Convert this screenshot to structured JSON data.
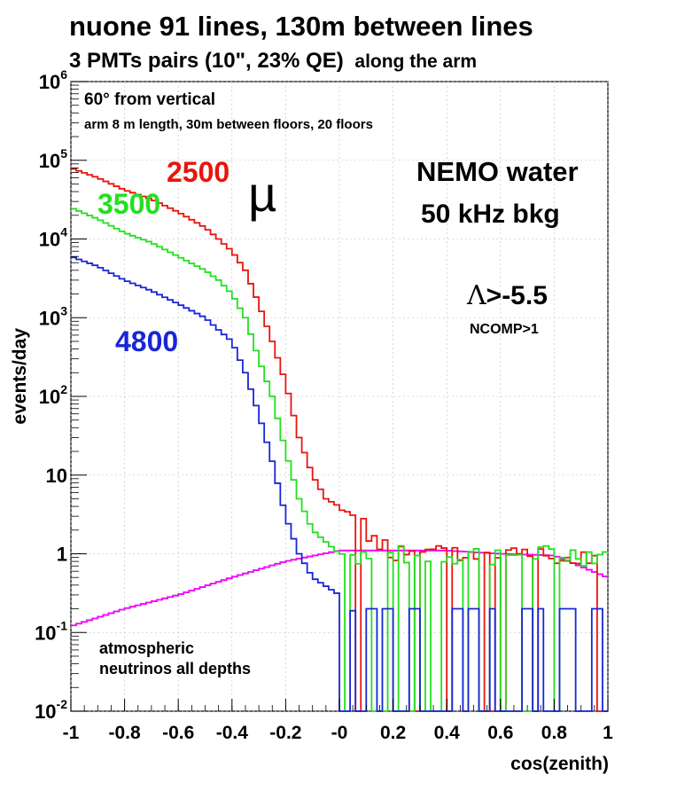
{
  "chart_data": {
    "type": "line",
    "title": "nuone 91 lines, 130m between lines",
    "subtitle_part1": "3 PMTs pairs (10\", 23% QE)",
    "subtitle_part2": "along the arm",
    "xlabel": "cos(zenith)",
    "ylabel": "events/day",
    "xlim": [
      -1,
      1
    ],
    "ylim": [
      0.01,
      1000000
    ],
    "log_y": true,
    "x_ticks": [
      {
        "v": -1,
        "label": "-1"
      },
      {
        "v": -0.8,
        "label": "-0.8"
      },
      {
        "v": -0.6,
        "label": "-0.6"
      },
      {
        "v": -0.4,
        "label": "-0.4"
      },
      {
        "v": -0.2,
        "label": "-0.2"
      },
      {
        "v": 0,
        "label": "-0"
      },
      {
        "v": 0.2,
        "label": "0.2"
      },
      {
        "v": 0.4,
        "label": "0.4"
      },
      {
        "v": 0.6,
        "label": "0.6"
      },
      {
        "v": 0.8,
        "label": "0.8"
      },
      {
        "v": 1,
        "label": "1"
      }
    ],
    "y_ticks": [
      {
        "v": 0.01,
        "base": "10",
        "exp": "-2",
        "label": "10-2"
      },
      {
        "v": 0.1,
        "base": "10",
        "exp": "-1",
        "label": "10-1"
      },
      {
        "v": 1,
        "base": "1",
        "exp": "",
        "label": "1"
      },
      {
        "v": 10,
        "base": "10",
        "exp": "",
        "label": "10"
      },
      {
        "v": 100,
        "base": "10",
        "exp": "2",
        "label": "102"
      },
      {
        "v": 1000,
        "base": "10",
        "exp": "3",
        "label": "103"
      },
      {
        "v": 10000,
        "base": "10",
        "exp": "4",
        "label": "104"
      },
      {
        "v": 100000,
        "base": "10",
        "exp": "5",
        "label": "105"
      },
      {
        "v": 1000000,
        "base": "10",
        "exp": "6",
        "label": "106"
      }
    ],
    "annotations": {
      "angle": "60° from vertical",
      "arm": "arm 8 m length, 30m between floors, 20 floors",
      "mu": "µ",
      "water": "NEMO water",
      "bkg": "50 kHz bkg",
      "lambda_sym": "Λ",
      "lambda_rest": ">-5.5",
      "ncomp": "NCOMP>1",
      "atm1": "atmospheric",
      "atm2": "neutrinos all depths"
    },
    "series": [
      {
        "name": "2500",
        "color": "#e8150c",
        "cut_points": [
          [
            -1.0,
            80000
          ],
          [
            -0.9,
            60000
          ],
          [
            -0.8,
            42000
          ],
          [
            -0.7,
            32000
          ],
          [
            -0.6,
            22000
          ],
          [
            -0.5,
            14000
          ],
          [
            -0.45,
            10000
          ],
          [
            -0.4,
            7000
          ],
          [
            -0.35,
            4000
          ],
          [
            -0.3,
            1500
          ],
          [
            -0.25,
            500
          ],
          [
            -0.2,
            150
          ],
          [
            -0.15,
            30
          ],
          [
            -0.1,
            10
          ],
          [
            -0.05,
            5
          ],
          [
            0,
            4
          ],
          [
            0.05,
            3
          ],
          [
            0.1,
            2
          ],
          [
            0.15,
            1.5
          ],
          [
            0.2,
            1
          ],
          [
            0.3,
            1
          ],
          [
            0.4,
            1
          ],
          [
            0.5,
            1
          ],
          [
            0.7,
            1
          ],
          [
            0.8,
            1
          ]
        ]
      },
      {
        "name": "3500",
        "color": "#22e01e",
        "cut_points": [
          [
            -1.0,
            25000
          ],
          [
            -0.9,
            18000
          ],
          [
            -0.8,
            12000
          ],
          [
            -0.7,
            9000
          ],
          [
            -0.6,
            6000
          ],
          [
            -0.5,
            4000
          ],
          [
            -0.45,
            3000
          ],
          [
            -0.4,
            2000
          ],
          [
            -0.35,
            1000
          ],
          [
            -0.3,
            300
          ],
          [
            -0.25,
            100
          ],
          [
            -0.2,
            20
          ],
          [
            -0.15,
            5
          ],
          [
            -0.1,
            2
          ],
          [
            0,
            1
          ],
          [
            0.2,
            1
          ],
          [
            0.4,
            1
          ],
          [
            0.6,
            1
          ],
          [
            0.8,
            1
          ]
        ]
      },
      {
        "name": "4800",
        "color": "#1826d6",
        "cut_points": [
          [
            -1.0,
            6000
          ],
          [
            -0.9,
            4500
          ],
          [
            -0.8,
            3000
          ],
          [
            -0.7,
            2200
          ],
          [
            -0.6,
            1500
          ],
          [
            -0.5,
            1000
          ],
          [
            -0.45,
            700
          ],
          [
            -0.4,
            500
          ],
          [
            -0.35,
            200
          ],
          [
            -0.3,
            60
          ],
          [
            -0.25,
            15
          ],
          [
            -0.2,
            3
          ],
          [
            -0.15,
            1
          ],
          [
            -0.1,
            0.5
          ],
          [
            0,
            0.3
          ],
          [
            0.1,
            0.2
          ]
        ]
      },
      {
        "name": "atmospheric neutrinos all depths",
        "color": "#ff00ff",
        "cut_points": [
          [
            -1.0,
            0.12
          ],
          [
            -0.8,
            0.2
          ],
          [
            -0.6,
            0.3
          ],
          [
            -0.4,
            0.5
          ],
          [
            -0.2,
            0.8
          ],
          [
            0,
            1.1
          ],
          [
            0.2,
            1.1
          ],
          [
            0.4,
            1.1
          ],
          [
            0.6,
            1.0
          ],
          [
            0.8,
            0.95
          ],
          [
            1.0,
            0.5
          ]
        ]
      }
    ],
    "curve_labels": {
      "red": "2500",
      "green": "3500",
      "blue": "4800"
    }
  },
  "colors": {
    "red": "#e8150c",
    "green": "#22e01e",
    "blue": "#1826d6",
    "magenta": "#ff00ff",
    "cyan": "#00e5ff",
    "yellow": "#ffee00",
    "axis": "#000000"
  }
}
